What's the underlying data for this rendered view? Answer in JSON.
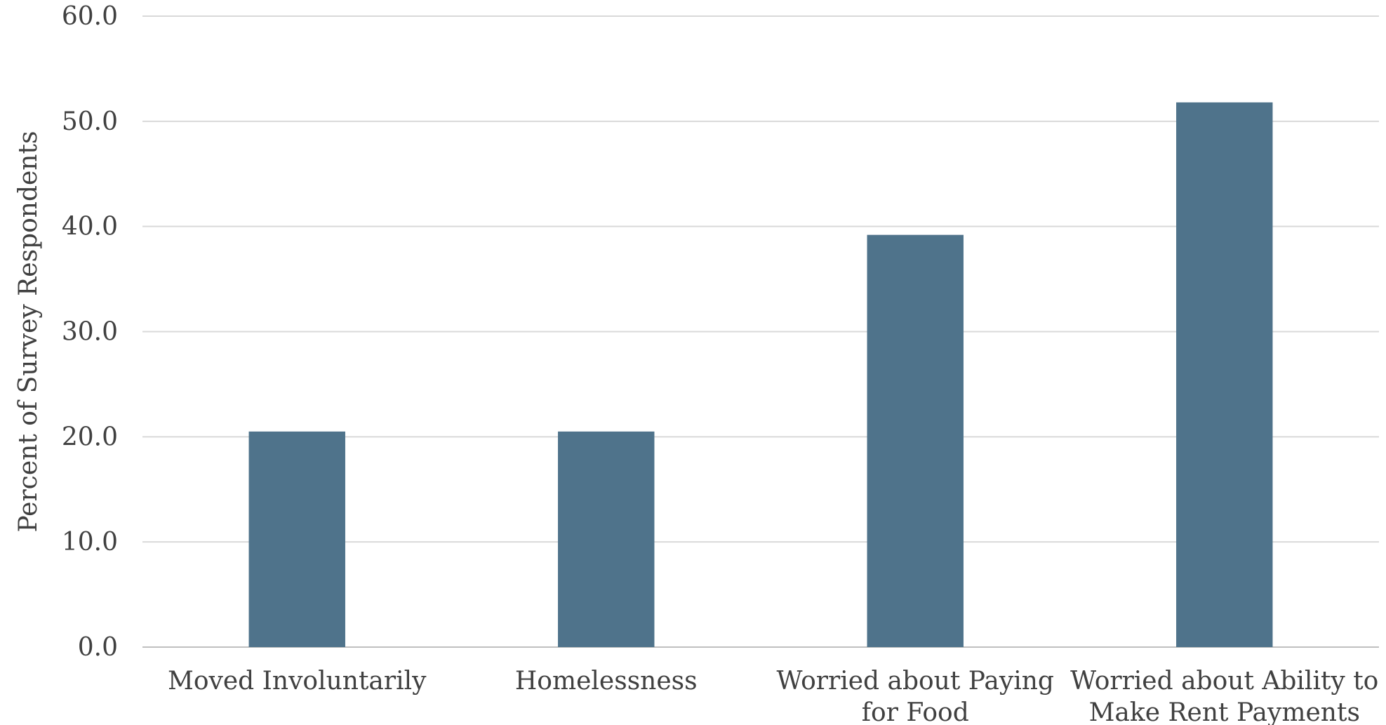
{
  "chart_data": {
    "type": "bar",
    "title": "",
    "xlabel": "",
    "ylabel": "Percent of Survey Respondents",
    "categories": [
      [
        "Moved Involuntarily"
      ],
      [
        "Homelessness"
      ],
      [
        "Worried about Paying",
        "for Food"
      ],
      [
        "Worried about Ability to",
        "Make Rent Payments"
      ]
    ],
    "values": [
      20.5,
      20.5,
      39.2,
      51.8
    ],
    "ylim": [
      0,
      60
    ],
    "yticks": [
      "0.0",
      "10.0",
      "20.0",
      "30.0",
      "40.0",
      "50.0",
      "60.0"
    ],
    "grid": true,
    "legend": "none",
    "colors": {
      "bar": "#4f738b",
      "grid": "#d9d9d9",
      "text": "#404040"
    }
  }
}
